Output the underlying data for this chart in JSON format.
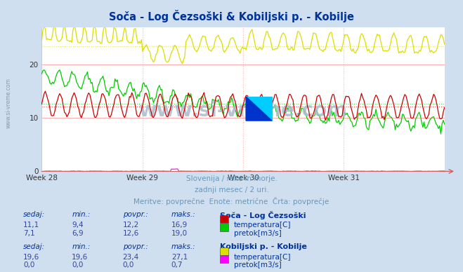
{
  "title": "Soča - Log Čezsoški & Kobiljski p. - Kobilje",
  "title_color": "#003399",
  "bg_color": "#d0dff0",
  "plot_bg_color": "#ffffff",
  "xlabel_weeks": [
    "Week 28",
    "Week 29",
    "Week 30",
    "Week 31"
  ],
  "n_points": 336,
  "subtitle1": "Slovenija / reke in morje.",
  "subtitle2": "zadnji mesec / 2 uri.",
  "subtitle3": "Meritve: povprečne  Enote: metrične  Črta: povprečje",
  "subtitle_color": "#6699bb",
  "watermark": "www.si-vreme.com",
  "watermark_color": "#aabbcc",
  "left_watermark": "www.si-vreme.com",
  "legend_section1": "Soča - Log Čezsoški",
  "legend_section2": "Kobiljski p. - Kobilje",
  "table_headers": [
    "sedaj:",
    "min.:",
    "povpr.:",
    "maks.:"
  ],
  "station1_row1": [
    "11,1",
    "9,4",
    "12,2",
    "16,9"
  ],
  "station1_row2": [
    "7,1",
    "6,9",
    "12,6",
    "19,0"
  ],
  "station2_row1": [
    "19,6",
    "19,6",
    "23,4",
    "27,1"
  ],
  "station2_row2": [
    "0,0",
    "0,0",
    "0,0",
    "0,7"
  ],
  "station1_label1": "temperatura[C]",
  "station1_label2": "pretok[m3/s]",
  "station2_label1": "temperatura[C]",
  "station2_label2": "pretok[m3/s]",
  "color_s1_temp": "#cc0000",
  "color_s1_flow": "#00cc00",
  "color_s2_temp": "#dddd00",
  "color_s2_flow": "#ff00ff",
  "avg_s1_temp": 12.2,
  "avg_s1_flow": 12.6,
  "avg_s2_temp": 23.4,
  "label_color": "#003399",
  "val_color": "#334499",
  "header_italic_color": "#003399"
}
